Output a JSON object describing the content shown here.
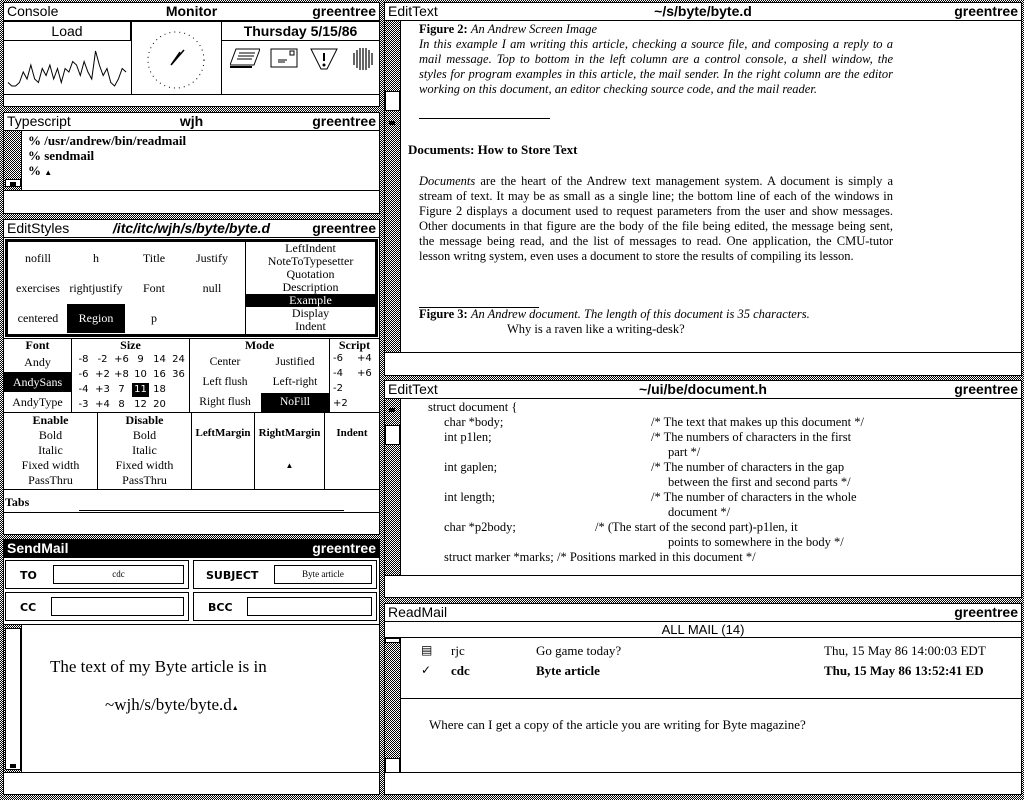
{
  "console": {
    "title": "Console",
    "center": "Monitor",
    "host": "greentree",
    "load_label": "Load",
    "date": "Thursday 5/15/86",
    "load_values": [
      3,
      2,
      2,
      3,
      6,
      4,
      8,
      4,
      3,
      7,
      5,
      8,
      4,
      7,
      3,
      7,
      6,
      9,
      8,
      5,
      9,
      6,
      4,
      12,
      8,
      5,
      7,
      3,
      2,
      4,
      7,
      6
    ],
    "icons": [
      "printer-icon",
      "mail-icon",
      "warning-icon",
      "sphere-icon"
    ]
  },
  "typescript": {
    "title": "Typescript",
    "center": "wjh",
    "host": "greentree",
    "lines": [
      "% /usr/andrew/bin/readmail",
      "% sendmail",
      "%"
    ]
  },
  "editstyles": {
    "title": "EditStyles",
    "center": "/itc/itc/wjh/s/byte/byte.d",
    "host": "greentree",
    "styles": [
      "nofill",
      "h",
      "Title",
      "Justify",
      "exercises",
      "rightjustify",
      "Font",
      "null",
      "centered",
      "Region",
      "p",
      ""
    ],
    "selected_style": "Region",
    "list": [
      "LeftIndent",
      "NoteToTypesetter",
      "Quotation",
      "Description",
      "Example",
      "Display",
      "Indent"
    ],
    "selected_list": "Example",
    "font": {
      "header": "Font",
      "items": [
        "Andy",
        "AndySans",
        "AndyType"
      ],
      "selected": "AndySans"
    },
    "size": {
      "header": "Size",
      "rows": [
        [
          "-8",
          "-2",
          "+6",
          "9",
          "14",
          "24"
        ],
        [
          "-6",
          "+2",
          "+8",
          "10",
          "16",
          "36"
        ],
        [
          "-4",
          "+3",
          "7",
          "11",
          "18",
          ""
        ],
        [
          "-3",
          "+4",
          "8",
          "12",
          "20",
          ""
        ]
      ],
      "selected": "11"
    },
    "mode": {
      "header": "Mode",
      "items": [
        "Center",
        "Justified",
        "Left flush",
        "Left-right",
        "Right flush",
        "NoFill"
      ],
      "selected": "NoFill"
    },
    "script": {
      "header": "Script",
      "rows": [
        [
          "-6",
          "+4"
        ],
        [
          "-4",
          "+6"
        ],
        [
          "-2",
          ""
        ],
        [
          "+2",
          ""
        ]
      ]
    },
    "enable": {
      "header": "Enable",
      "items": [
        "Bold",
        "Italic",
        "Fixed width",
        "PassThru"
      ]
    },
    "disable": {
      "header": "Disable",
      "items": [
        "Bold",
        "Italic",
        "Fixed width",
        "PassThru"
      ]
    },
    "left_margin": "LeftMargin",
    "right_margin": "RightMargin",
    "indent": "Indent",
    "tabs": "Tabs"
  },
  "sendmail": {
    "title": "SendMail",
    "host": "greentree",
    "to_label": "TO",
    "to_value": "cdc",
    "subject_label": "SUBJECT",
    "subject_value": "Byte article",
    "cc_label": "CC",
    "cc_value": "",
    "bcc_label": "BCC",
    "bcc_value": "",
    "body_line1": "The text of my Byte article is in",
    "body_line2": "~wjh/s/byte/byte.d"
  },
  "edit1": {
    "title": "EditText",
    "center": "~/s/byte/byte.d",
    "host": "greentree",
    "fig2_label": "Figure 2:",
    "fig2_caption": "An Andrew Screen Image",
    "fig2_text": "In this example I am writing this article, checking a source file, and composing a reply to a mail message.  Top to bottom in the left column are a control console, a shell window, the styles for program examples in this article, the mail sender.  In the right column are the editor working on this document, an editor checking source code, and the mail reader.",
    "heading": "Documents:  How to Store Text",
    "para_em": "Documents",
    "para": " are the heart of the Andrew text management system.  A document is simply a stream of text.  It may be as small as a single line; the bottom line of each of the windows in Figure 2 displays a document used to request parameters from the user and show messages.  Other documents in that figure are the body of the file being edited, the message being sent, the message being read, and the list of messages to read.  One application, the CMU-tutor lesson writng system, even uses a document to store the results of compiling its lesson.",
    "fig3_label": "Figure 3:",
    "fig3_caption": "An Andrew document.  The length of this document is 35 characters.",
    "fig3_example": "Why is a raven like a writing-desk?"
  },
  "edit2": {
    "title": "EditText",
    "center": "~/ui/be/document.h",
    "host": "greentree",
    "lines": [
      {
        "code": "struct document {",
        "comment": ""
      },
      {
        "code": "char *body;",
        "comment": "/* The text that makes up this document */"
      },
      {
        "code": "int p1len;",
        "comment": "/* The numbers of characters in the first"
      },
      {
        "code": "",
        "comment": "part */"
      },
      {
        "code": "int gaplen;",
        "comment": "/* The number of characters in the gap"
      },
      {
        "code": "",
        "comment": "between the first and second parts */"
      },
      {
        "code": "int length;",
        "comment": "/* The number of characters in the whole"
      },
      {
        "code": "",
        "comment": "document */"
      },
      {
        "code": "char *p2body;",
        "comment": "/* (The start of the second part)-p1len, it"
      },
      {
        "code": "",
        "comment": "points to somewhere in the body */"
      },
      {
        "code": "struct marker *marks;",
        "comment": "/* Positions marked in this document */"
      }
    ]
  },
  "readmail": {
    "title": "ReadMail",
    "host": "greentree",
    "folder": "ALL MAIL  (14)",
    "messages": [
      {
        "from": "rjc",
        "subject": "Go game today?",
        "date": "Thu, 15 May 86 14:00:03 EDT",
        "icon": "unread-mail-icon",
        "current": false
      },
      {
        "from": "cdc",
        "subject": "Byte article",
        "date": "Thu, 15 May 86 13:52:41 ED",
        "icon": "checkmark-icon",
        "current": true
      }
    ],
    "body": "Where can I get a copy of the article you are writing for Byte magazine?"
  }
}
